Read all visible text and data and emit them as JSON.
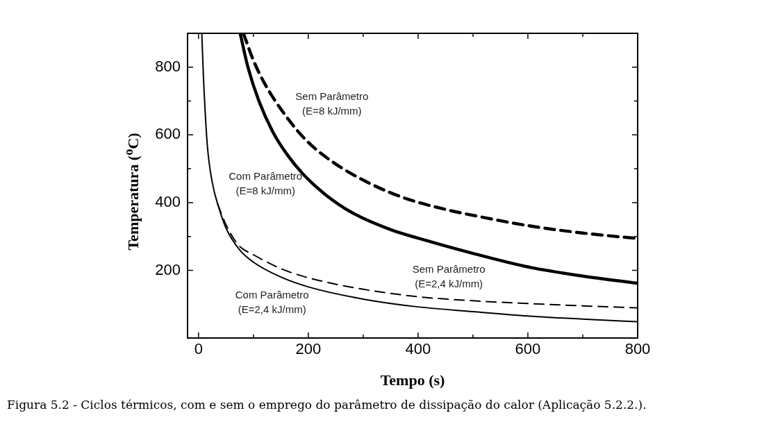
{
  "chart_data": {
    "type": "line",
    "xlabel": "Tempo (s)",
    "ylabel": "Temperatura ($^{o}$C)",
    "annotations": [
      "Figura 5.2 - Ciclos térmicos, com e sem o emprego do parâmetro de dissipação do calor (Aplicação 5.2.2.)."
    ],
    "xlim": [
      -20,
      800
    ],
    "xticks": [
      0,
      200,
      400,
      600,
      800
    ],
    "ylim": [
      0,
      900
    ],
    "yticks": [
      200,
      400,
      600,
      800
    ],
    "grid": false,
    "legend": false,
    "marker": "none",
    "series": [
      {
        "name": "Sem Parâmetro\n(E=8 kJ/mm)",
        "color": "#000000",
        "line_style": "dashed",
        "x": [
          82,
          100,
          121,
          159,
          198,
          249,
          314,
          378,
          455,
          523,
          600,
          700,
          800
        ],
        "values": [
          899,
          820,
          750,
          656,
          581,
          515,
          455,
          412,
          378,
          355,
          332,
          310,
          294
        ]
      },
      {
        "name": "Com Parâmetro\n(E=8 kJ/mm)",
        "color": "#000000",
        "line_style": "solid",
        "x": [
          76,
          90,
          110,
          135,
          160,
          190,
          230,
          280,
          350,
          400,
          500,
          600,
          700,
          800
        ],
        "values": [
          899,
          800,
          700,
          610,
          545,
          485,
          425,
          370,
          320,
          295,
          250,
          210,
          183,
          162
        ]
      },
      {
        "name": "Sem Parâmetro\n(E=2,4 kJ/mm)",
        "color": "#000000",
        "line_style": "dashed",
        "x": [
          35,
          50,
          73,
          100,
          150,
          200,
          300,
          400,
          500,
          600,
          700,
          800
        ],
        "values": [
          395,
          335,
          274,
          246,
          205,
          178,
          144,
          122,
          110,
          102,
          95,
          89
        ]
      },
      {
        "name": "Com Parâmetro\n(E=2,4 kJ/mm)",
        "color": "#000000",
        "line_style": "solid",
        "x": [
          6,
          9,
          16,
          25,
          37,
          50,
          75,
          100,
          150,
          200,
          300,
          400,
          500,
          600,
          700,
          800
        ],
        "values": [
          899,
          770,
          570,
          460,
          385,
          325,
          260,
          224,
          180,
          151,
          115,
          92,
          78,
          65,
          56,
          48
        ]
      }
    ]
  }
}
